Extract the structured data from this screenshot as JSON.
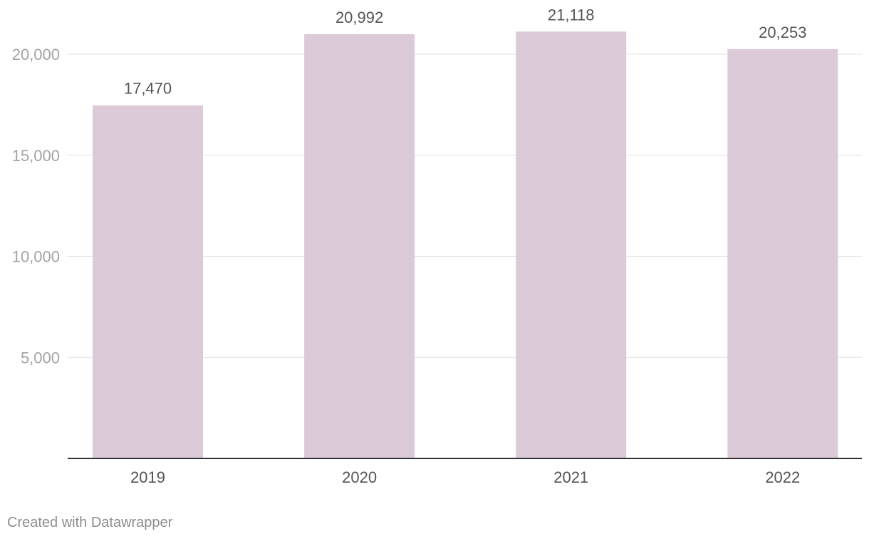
{
  "chart_data": {
    "type": "bar",
    "title": "",
    "xlabel": "",
    "ylabel": "",
    "categories": [
      "2019",
      "2020",
      "2021",
      "2022"
    ],
    "values": [
      17470,
      20992,
      21118,
      20253
    ],
    "value_labels": [
      "17,470",
      "20,992",
      "21,118",
      "20,253"
    ],
    "ylim": [
      0,
      22500
    ],
    "yticks": [
      5000,
      10000,
      15000,
      20000
    ],
    "ytick_labels": [
      "5,000",
      "10,000",
      "15,000",
      "20,000"
    ],
    "grid": true,
    "bar_color": "#dccad9"
  },
  "footer": {
    "credit": "Created with Datawrapper"
  }
}
